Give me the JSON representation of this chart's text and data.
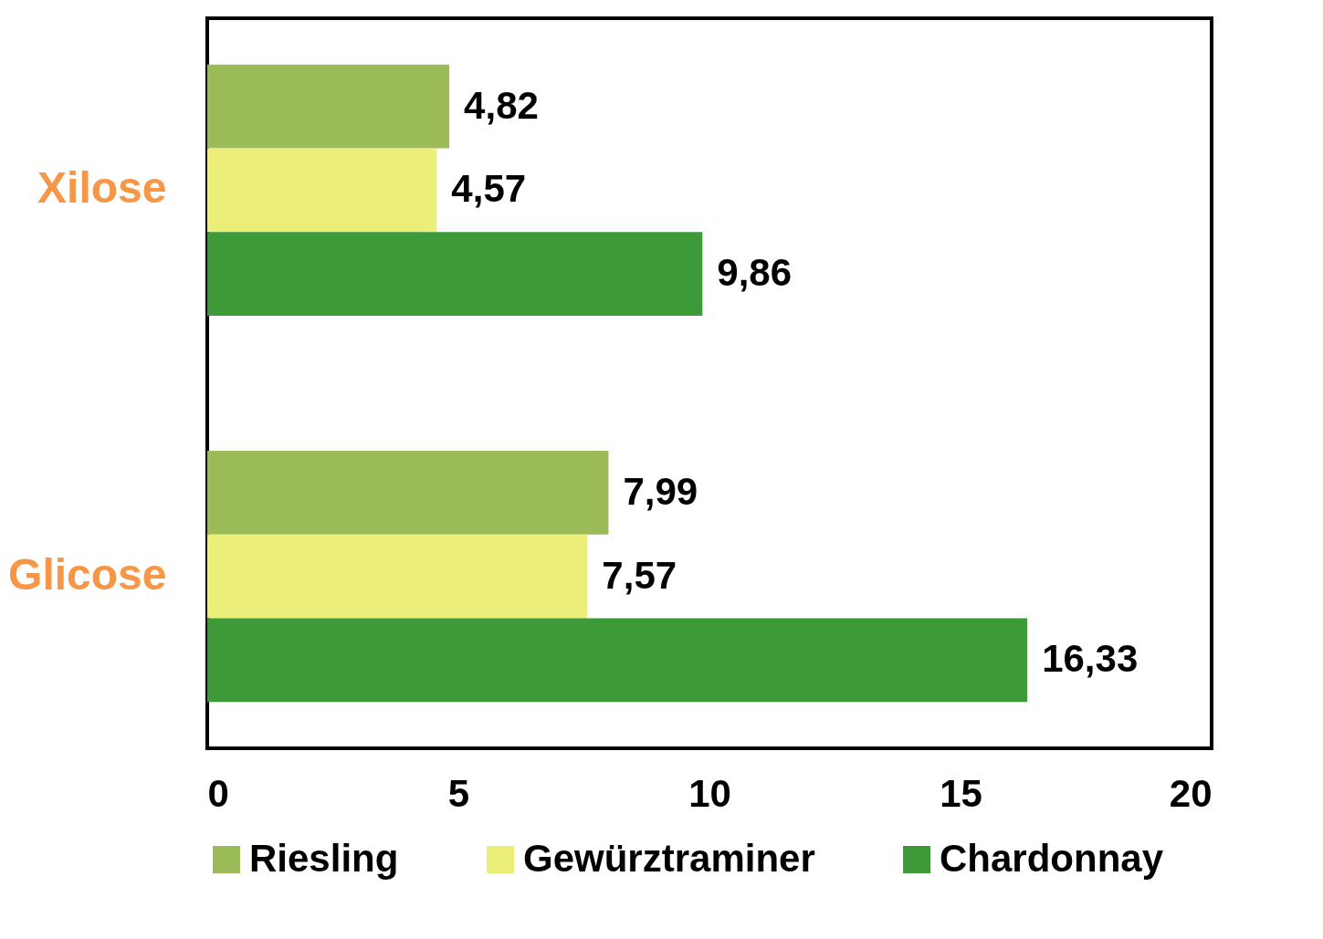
{
  "chart_data": {
    "type": "bar",
    "orientation": "horizontal",
    "categories": [
      "Xilose",
      "Glicose"
    ],
    "series": [
      {
        "name": "Riesling",
        "color": "#9bbb59",
        "values": [
          4.82,
          7.99
        ],
        "value_labels": [
          "4,82",
          "7,99"
        ]
      },
      {
        "name": "Gewürztraminer",
        "color": "#ebef7a",
        "values": [
          4.57,
          7.57
        ],
        "value_labels": [
          "4,57",
          "7,57"
        ]
      },
      {
        "name": "Chardonnay",
        "color": "#3e9a38",
        "values": [
          9.86,
          16.33
        ],
        "value_labels": [
          "9,86",
          "16,33"
        ]
      }
    ],
    "xlim": [
      0,
      20
    ],
    "xticks": [
      0,
      5,
      10,
      15,
      20
    ],
    "grid": false,
    "legend": "bottom"
  }
}
